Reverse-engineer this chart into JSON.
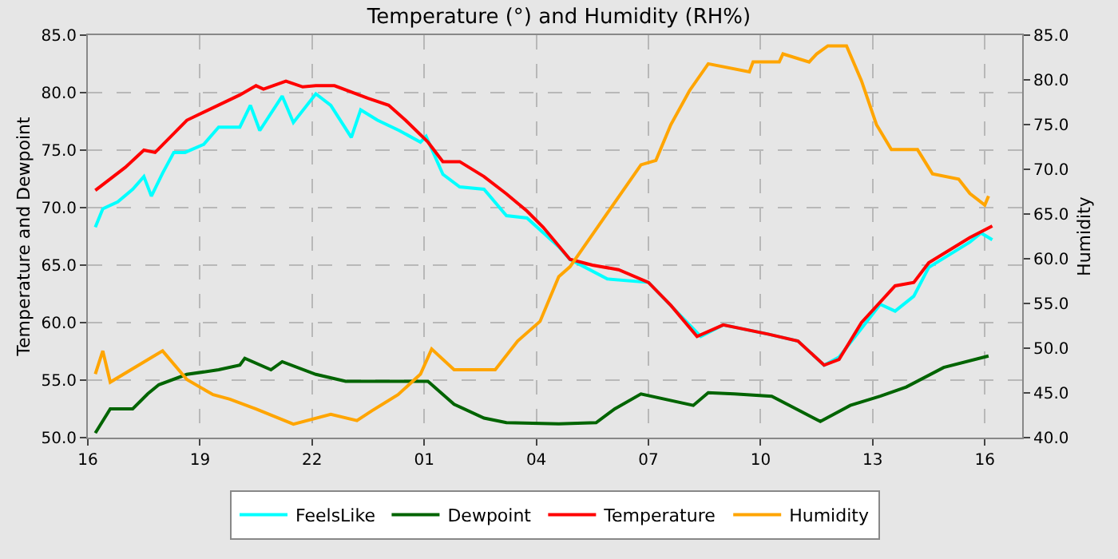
{
  "chart_data": {
    "type": "line",
    "title": "Temperature (°) and Humidity (RH%)",
    "ylabel": "Temperature and Dewpoint",
    "y2label": "Humidity",
    "xlim": [
      "--01-01T16:00",
      "--01-02T17:00"
    ],
    "xticks": [
      {
        "value": "--01-01T16:00",
        "label": "16"
      },
      {
        "value": "--01-01T19:00",
        "label": "19"
      },
      {
        "value": "--01-01T22:00",
        "label": "22"
      },
      {
        "value": "--01-02T01:00",
        "label": "01"
      },
      {
        "value": "--01-02T04:00",
        "label": "04"
      },
      {
        "value": "--01-02T07:00",
        "label": "07"
      },
      {
        "value": "--01-02T10:00",
        "label": "10"
      },
      {
        "value": "--01-02T13:00",
        "label": "13"
      },
      {
        "value": "--01-02T16:00",
        "label": "16"
      }
    ],
    "ylim": [
      50,
      85
    ],
    "yticks": [
      {
        "value": 50,
        "label": "50.0"
      },
      {
        "value": 55,
        "label": "55.0"
      },
      {
        "value": 60,
        "label": "60.0"
      },
      {
        "value": 65,
        "label": "65.0"
      },
      {
        "value": 70,
        "label": "70.0"
      },
      {
        "value": 75,
        "label": "75.0"
      },
      {
        "value": 80,
        "label": "80.0"
      },
      {
        "value": 85,
        "label": "85.0"
      }
    ],
    "y2lim": [
      40,
      85
    ],
    "y2ticks": [
      {
        "value": 40,
        "label": "40.0"
      },
      {
        "value": 45,
        "label": "45.0"
      },
      {
        "value": 50,
        "label": "50.0"
      },
      {
        "value": 55,
        "label": "55.0"
      },
      {
        "value": 60,
        "label": "60.0"
      },
      {
        "value": 65,
        "label": "65.0"
      },
      {
        "value": 70,
        "label": "70.0"
      },
      {
        "value": 75,
        "label": "75.0"
      },
      {
        "value": 80,
        "label": "80.0"
      },
      {
        "value": 85,
        "label": "85.0"
      }
    ],
    "grid": true,
    "legend": "bottom",
    "line_style": "solid",
    "marker": "none",
    "series": [
      {
        "name": "FeelsLike",
        "color": "#00ffff",
        "x": [
          "--01-01T16:12",
          "--01-01T16:24",
          "--01-01T16:48",
          "--01-01T17:12",
          "--01-01T17:30",
          "--01-01T17:42",
          "--01-01T18:00",
          "--01-01T18:18",
          "--01-01T18:36",
          "--01-01T19:06",
          "--01-01T19:30",
          "--01-01T20:04",
          "--01-01T20:21",
          "--01-01T20:36",
          "--01-01T21:12",
          "--01-01T21:30",
          "--01-01T22:06",
          "--01-01T22:30",
          "--01-01T23:03",
          "--01-01T23:18",
          "--01-01T23:45",
          "--01-02T00:20",
          "--01-02T00:54",
          "--01-02T01:03",
          "--01-02T01:30",
          "--01-02T01:57",
          "--01-02T02:36",
          "--01-02T03:12",
          "--01-02T03:45",
          "--01-02T04:36",
          "--01-02T04:54",
          "--01-02T05:54",
          "--01-02T07:00",
          "--01-02T08:24",
          "--01-02T09:00",
          "--01-02T10:12",
          "--01-02T11:00",
          "--01-02T11:42",
          "--01-02T12:06",
          "--01-02T12:42",
          "--01-02T13:12",
          "--01-02T13:36",
          "--01-02T14:06",
          "--01-02T14:30",
          "--01-02T15:36",
          "--01-02T15:54",
          "--01-02T16:12"
        ],
        "values": [
          68.3,
          69.9,
          70.5,
          71.6,
          72.7,
          71.0,
          73.0,
          74.8,
          74.8,
          75.5,
          77.0,
          77.0,
          78.9,
          76.7,
          79.7,
          77.4,
          79.9,
          78.9,
          76.1,
          78.5,
          77.6,
          76.7,
          75.7,
          76.2,
          72.9,
          71.8,
          71.6,
          69.3,
          69.1,
          66.6,
          65.5,
          63.8,
          63.5,
          58.8,
          59.8,
          59.0,
          58.4,
          56.3,
          57.0,
          59.5,
          61.6,
          61.0,
          62.3,
          64.8,
          67.0,
          67.8,
          67.2
        ]
      },
      {
        "name": "Dewpoint",
        "color": "#006400",
        "x": [
          "--01-01T16:12",
          "--01-01T16:36",
          "--01-01T17:12",
          "--01-01T17:36",
          "--01-01T17:54",
          "--01-01T18:39",
          "--01-01T19:30",
          "--01-01T20:04",
          "--01-01T20:12",
          "--01-01T20:54",
          "--01-01T21:12",
          "--01-01T22:06",
          "--01-01T22:54",
          "--01-02T00:18",
          "--01-02T01:06",
          "--01-02T01:48",
          "--01-02T02:36",
          "--01-02T03:12",
          "--01-02T04:36",
          "--01-02T05:36",
          "--01-02T06:06",
          "--01-02T06:48",
          "--01-02T08:12",
          "--01-02T08:36",
          "--01-02T09:18",
          "--01-02T10:18",
          "--01-02T11:36",
          "--01-02T12:24",
          "--01-02T13:12",
          "--01-02T13:54",
          "--01-02T14:54",
          "--01-02T16:06"
        ],
        "values": [
          50.4,
          52.5,
          52.5,
          53.8,
          54.6,
          55.5,
          55.9,
          56.3,
          56.9,
          55.9,
          56.6,
          55.5,
          54.9,
          54.9,
          54.9,
          52.9,
          51.7,
          51.3,
          51.2,
          51.3,
          52.5,
          53.8,
          52.8,
          53.9,
          53.8,
          53.6,
          51.4,
          52.8,
          53.6,
          54.4,
          56.1,
          57.1
        ]
      },
      {
        "name": "Temperature",
        "color": "#ff0000",
        "x": [
          "--01-01T16:12",
          "--01-01T17:00",
          "--01-01T17:30",
          "--01-01T17:48",
          "--01-01T18:39",
          "--01-01T20:04",
          "--01-01T20:30",
          "--01-01T20:42",
          "--01-01T21:18",
          "--01-01T21:45",
          "--01-01T22:06",
          "--01-01T22:36",
          "--01-01T23:30",
          "--01-02T00:03",
          "--01-02T00:30",
          "--01-02T01:06",
          "--01-02T01:30",
          "--01-02T01:57",
          "--01-02T02:36",
          "--01-02T03:12",
          "--01-02T03:45",
          "--01-02T04:11",
          "--01-02T04:54",
          "--01-02T05:30",
          "--01-02T06:12",
          "--01-02T07:00",
          "--01-02T07:36",
          "--01-02T08:18",
          "--01-02T09:00",
          "--01-02T10:12",
          "--01-02T11:00",
          "--01-02T11:42",
          "--01-02T12:06",
          "--01-02T12:42",
          "--01-02T13:36",
          "--01-02T14:06",
          "--01-02T14:30",
          "--01-02T15:36",
          "--01-02T16:12"
        ],
        "values": [
          71.5,
          73.5,
          75.0,
          74.8,
          77.6,
          79.8,
          80.6,
          80.3,
          81.0,
          80.5,
          80.6,
          80.6,
          79.5,
          78.9,
          77.6,
          75.7,
          74.0,
          74.0,
          72.7,
          71.2,
          69.7,
          68.3,
          65.5,
          65.0,
          64.6,
          63.5,
          61.5,
          58.8,
          59.8,
          59.0,
          58.4,
          56.3,
          56.8,
          60.0,
          63.2,
          63.5,
          65.2,
          67.4,
          68.4
        ]
      },
      {
        "name": "Humidity",
        "color": "#ffa500",
        "axis": "y2",
        "x": [
          "--01-01T16:12",
          "--01-01T16:24",
          "--01-01T16:36",
          "--01-01T17:36",
          "--01-01T18:00",
          "--01-01T18:39",
          "--01-01T19:21",
          "--01-01T19:48",
          "--01-01T20:30",
          "--01-01T21:30",
          "--01-01T22:30",
          "--01-01T23:12",
          "--01-01T23:36",
          "--01-02T00:18",
          "--01-02T00:54",
          "--01-02T01:12",
          "--01-02T01:48",
          "--01-02T02:54",
          "--01-02T03:30",
          "--01-02T04:06",
          "--01-02T04:36",
          "--01-02T04:54",
          "--01-02T05:54",
          "--01-02T06:48",
          "--01-02T07:12",
          "--01-02T07:36",
          "--01-02T08:06",
          "--01-02T08:36",
          "--01-02T09:42",
          "--01-02T09:48",
          "--01-02T10:30",
          "--01-02T10:36",
          "--01-02T11:18",
          "--01-02T11:30",
          "--01-02T11:48",
          "--01-02T12:18",
          "--01-02T12:42",
          "--01-02T13:06",
          "--01-02T13:30",
          "--01-02T14:12",
          "--01-02T14:36",
          "--01-02T15:18",
          "--01-02T15:36",
          "--01-02T16:00",
          "--01-02T16:06"
        ],
        "values": [
          47.1,
          49.7,
          46.2,
          48.7,
          49.7,
          46.5,
          44.8,
          44.3,
          43.2,
          41.5,
          42.6,
          41.9,
          43.0,
          44.8,
          47.1,
          49.9,
          47.6,
          47.6,
          50.8,
          53.0,
          58.0,
          59.1,
          65.1,
          70.5,
          71.0,
          75.0,
          78.8,
          81.8,
          80.9,
          82.0,
          82.0,
          82.9,
          82.0,
          82.9,
          83.8,
          83.8,
          79.9,
          75.0,
          72.2,
          72.2,
          69.5,
          68.9,
          67.3,
          66.0,
          67.0
        ]
      }
    ]
  }
}
